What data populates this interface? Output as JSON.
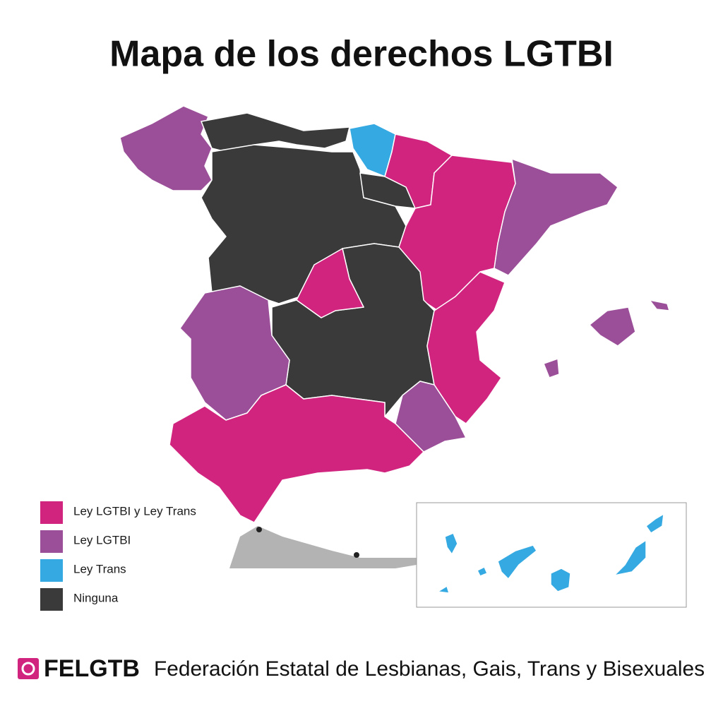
{
  "title": "Mapa de los derechos LGTBI",
  "legend": [
    {
      "label": "Ley LGTBI y Ley Trans",
      "color": "#d1247f"
    },
    {
      "label": "Ley LGTBI",
      "color": "#9a4f98"
    },
    {
      "label": "Ley Trans",
      "color": "#35a9e1"
    },
    {
      "label": "Ninguna",
      "color": "#3a3a3a"
    }
  ],
  "footer": {
    "logo": "FELGTB",
    "text": "Federación Estatal de Lesbianas, Gais, Trans y Bisexuales"
  }
}
